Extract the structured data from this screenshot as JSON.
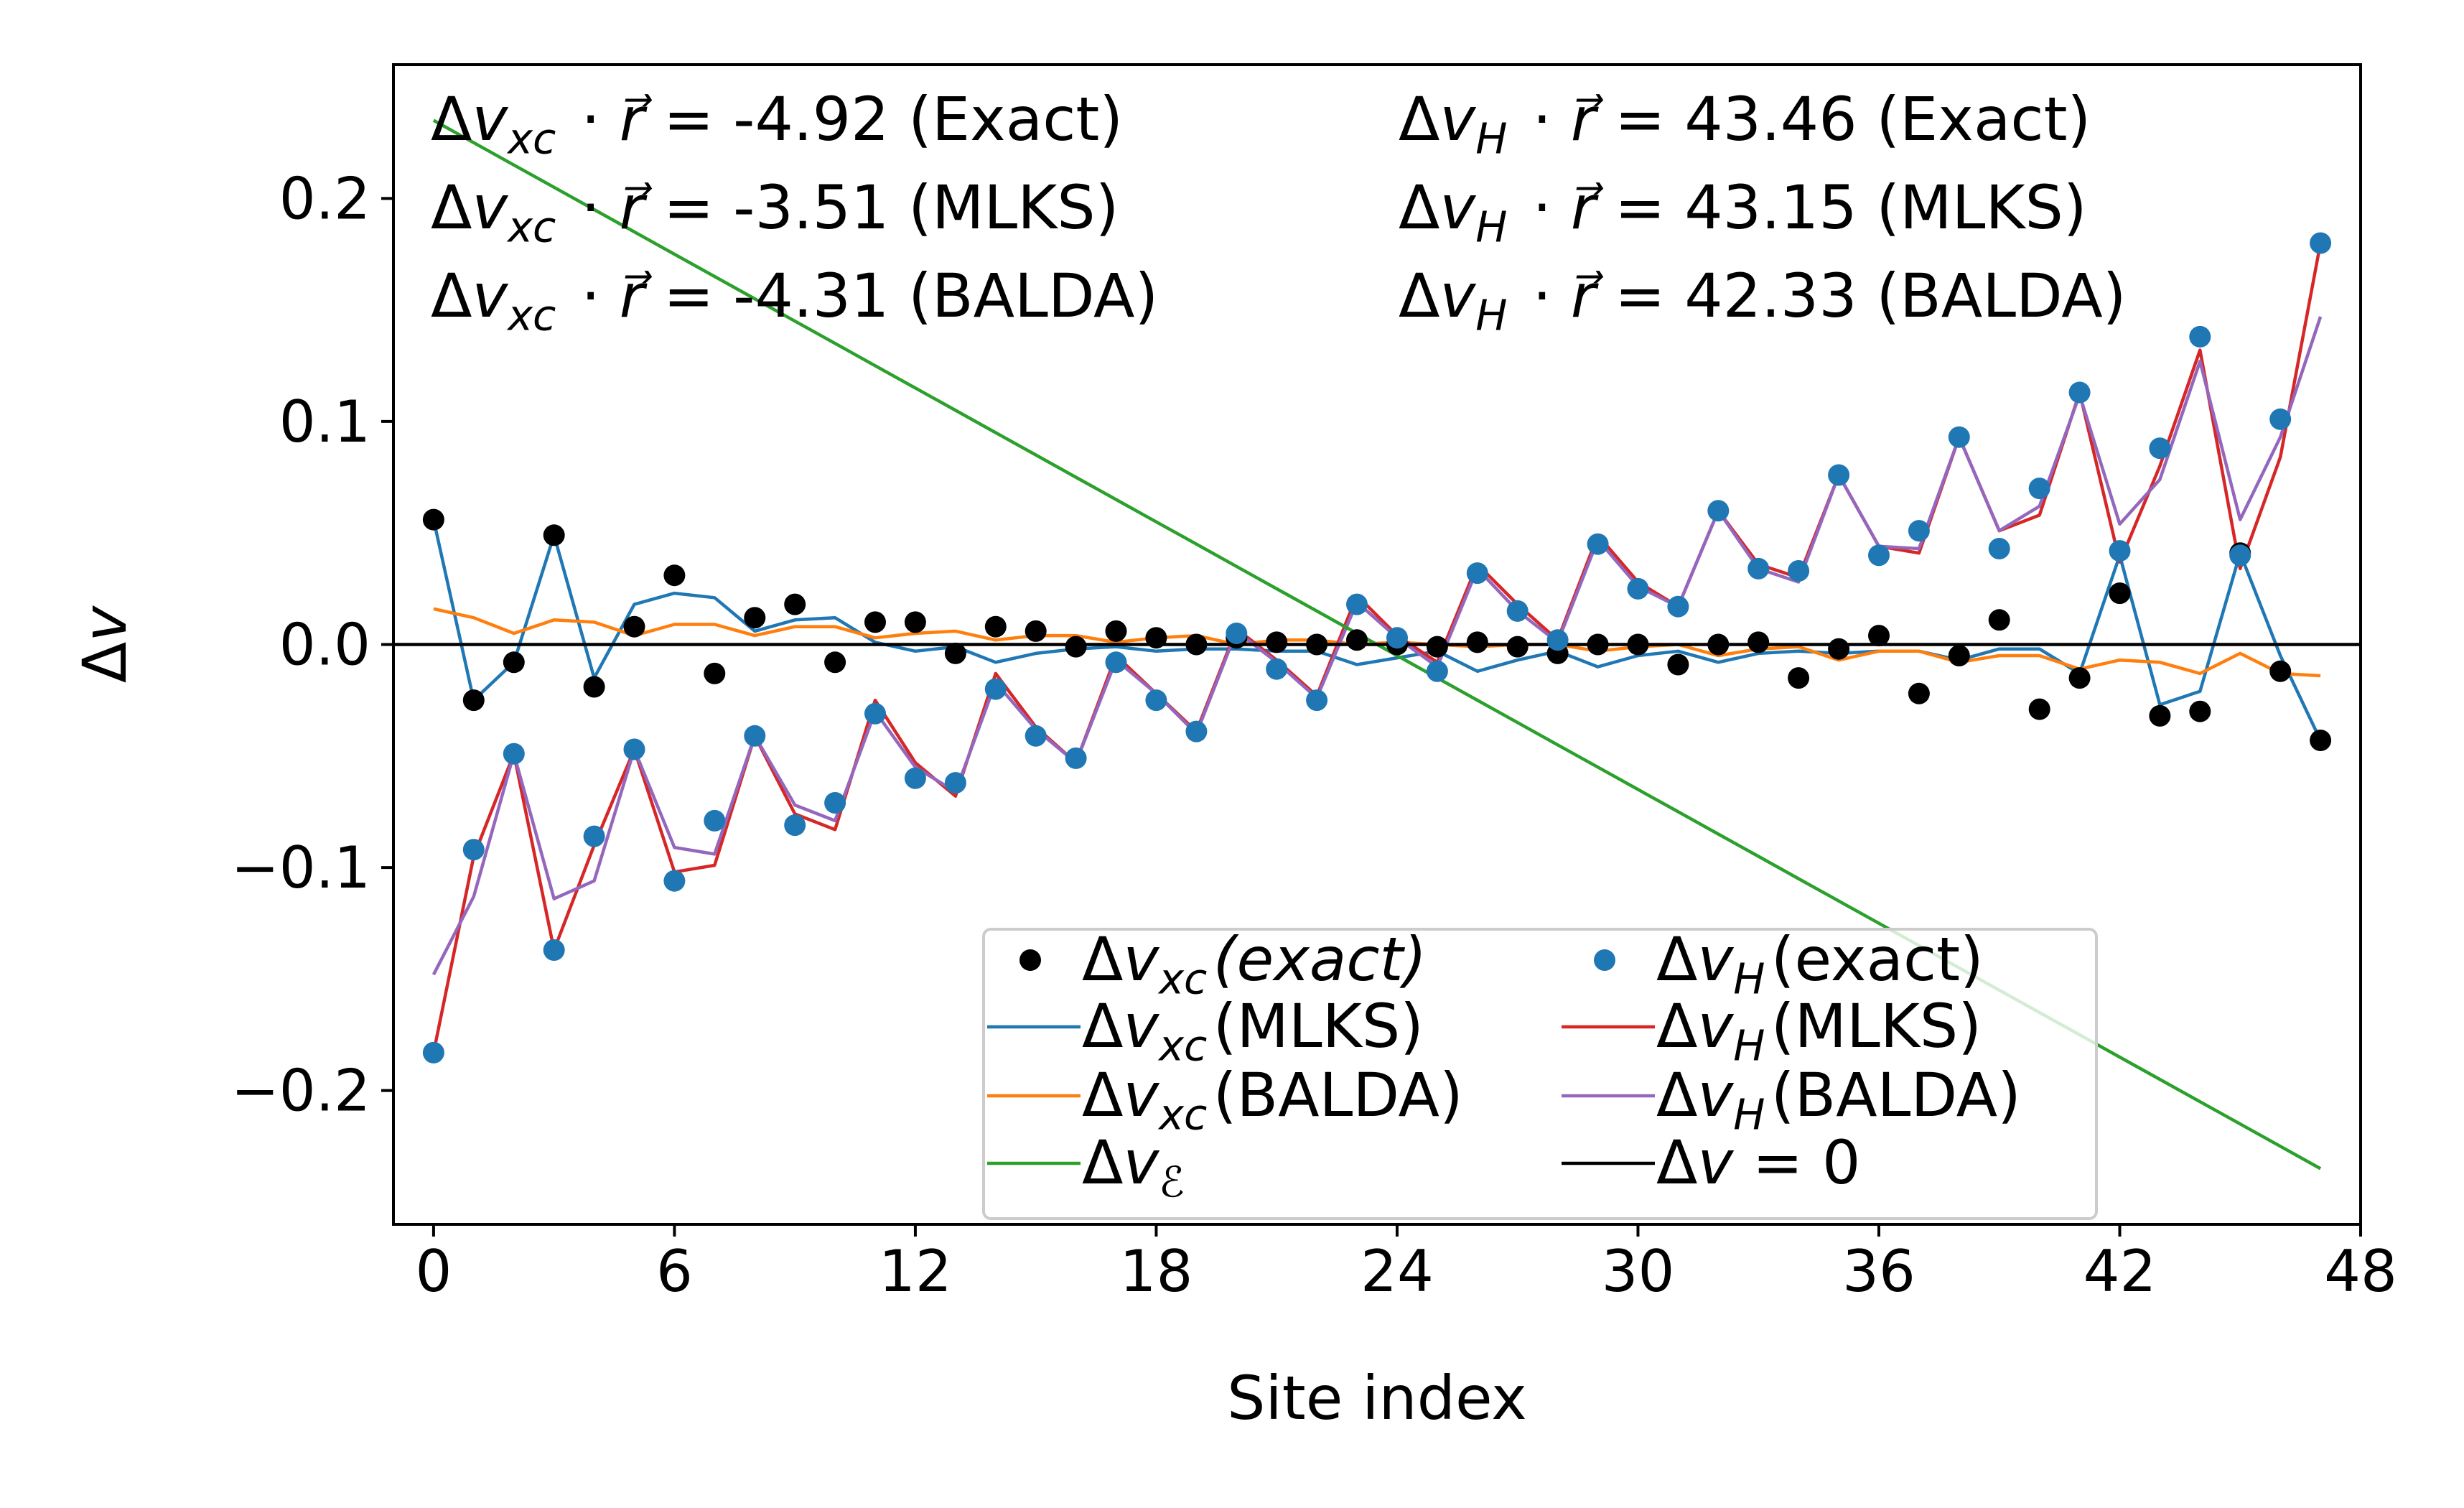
{
  "chart_data": {
    "type": "scatter+line",
    "xlabel": "Site index",
    "ylabel": "Δv",
    "xlim": [
      -1,
      48
    ],
    "ylim": [
      -0.26,
      0.26
    ],
    "xticks": [
      0,
      6,
      12,
      18,
      24,
      30,
      36,
      42,
      48
    ],
    "xtick_labels": [
      "0",
      "6",
      "12",
      "18",
      "24",
      "30",
      "36",
      "42",
      "48"
    ],
    "yticks": [
      -0.2,
      -0.1,
      0.0,
      0.1,
      0.2
    ],
    "ytick_labels": [
      "−0.2",
      "−0.1",
      "0.0",
      "0.1",
      "0.2"
    ],
    "annotations": [
      {
        "lines": [
          "Δv_xc · r⃗ = -4.92 (Exact)",
          "Δv_xc · r⃗ = -3.51 (MLKS)",
          "Δv_xc · r⃗ = -4.31 (BALDA)"
        ]
      },
      {
        "lines": [
          "Δv_H · r⃗ = 43.46 (Exact)",
          "Δv_H · r⃗ = 43.15 (MLKS)",
          "Δv_H · r⃗ = 42.33 (BALDA)"
        ]
      }
    ],
    "annotation_parts": [
      [
        {
          "sym": "Δv",
          "sub": "xc",
          "op": "·",
          "vec": "r⃗",
          "rest": " = -4.92 (Exact)"
        },
        {
          "sym": "Δv",
          "sub": "xc",
          "op": "·",
          "vec": "r⃗",
          "rest": " = -3.51 (MLKS)"
        },
        {
          "sym": "Δv",
          "sub": "xc",
          "op": "·",
          "vec": "r⃗",
          "rest": " = -4.31 (BALDA)"
        }
      ],
      [
        {
          "sym": "Δv",
          "sub": "H",
          "op": "·",
          "vec": "r⃗",
          "rest": " = 43.46 (Exact)"
        },
        {
          "sym": "Δv",
          "sub": "H",
          "op": "·",
          "vec": "r⃗",
          "rest": " = 43.15 (MLKS)"
        },
        {
          "sym": "Δv",
          "sub": "H",
          "op": "·",
          "vec": "r⃗",
          "rest": " = 42.33 (BALDA)"
        }
      ]
    ],
    "legend": {
      "placement": "lower-right",
      "entries": [
        {
          "label": "Δv_xc(exact)",
          "sym": "Δv",
          "sub": "xc",
          "tail": "(exact)",
          "tail_italic": true,
          "marker": "dot",
          "series": "vxc_exact"
        },
        {
          "label": "Δv_H(exact)",
          "sym": "Δv",
          "sub": "H",
          "tail": "(exact)",
          "tail_italic": false,
          "marker": "dot",
          "series": "vh_exact"
        },
        {
          "label": "Δv_xc(MLKS)",
          "sym": "Δv",
          "sub": "xc",
          "tail": "(MLKS)",
          "tail_italic": false,
          "marker": "line",
          "series": "vxc_mlks"
        },
        {
          "label": "Δv_H(MLKS)",
          "sym": "Δv",
          "sub": "H",
          "tail": "(MLKS)",
          "tail_italic": false,
          "marker": "line",
          "series": "vh_mlks"
        },
        {
          "label": "Δv_xc(BALDA)",
          "sym": "Δv",
          "sub": "xc",
          "tail": "(BALDA)",
          "tail_italic": false,
          "marker": "line",
          "series": "vxc_balda"
        },
        {
          "label": "Δv_H(BALDA)",
          "sym": "Δv",
          "sub": "H",
          "tail": "(BALDA)",
          "tail_italic": false,
          "marker": "line",
          "series": "vh_balda"
        },
        {
          "label": "Δv_ℰ",
          "sym": "Δv",
          "sub": "ℰ",
          "tail": "",
          "tail_italic": false,
          "marker": "line",
          "series": "v_field"
        },
        {
          "label": "Δv = 0",
          "sym": "Δv",
          "sub": "",
          "tail": " = 0",
          "tail_italic": false,
          "marker": "line",
          "series": "zero"
        }
      ]
    },
    "x": [
      0,
      1,
      2,
      3,
      4,
      5,
      6,
      7,
      8,
      9,
      10,
      11,
      12,
      13,
      14,
      15,
      16,
      17,
      18,
      19,
      20,
      21,
      22,
      23,
      24,
      25,
      26,
      27,
      28,
      29,
      30,
      31,
      32,
      33,
      34,
      35,
      36,
      37,
      38,
      39,
      40,
      41,
      42,
      43,
      44,
      45,
      46,
      47
    ],
    "series": [
      {
        "id": "vxc_exact",
        "name": "Δv_xc(exact)",
        "style": "points",
        "color": "#000000",
        "values": [
          0.056,
          -0.025,
          -0.008,
          0.049,
          -0.019,
          0.008,
          0.031,
          -0.013,
          0.012,
          0.018,
          -0.008,
          0.01,
          0.01,
          -0.004,
          0.008,
          0.006,
          -0.001,
          0.006,
          0.003,
          0.0,
          0.003,
          0.001,
          0.0,
          0.002,
          0.0,
          -0.001,
          0.001,
          -0.001,
          -0.004,
          0.0,
          0.0,
          -0.009,
          0.0,
          0.001,
          -0.015,
          -0.002,
          0.004,
          -0.022,
          -0.005,
          0.011,
          -0.029,
          -0.015,
          0.023,
          -0.032,
          -0.03,
          0.041,
          -0.012,
          -0.043
        ]
      },
      {
        "id": "vh_exact",
        "name": "Δv_H(exact)",
        "style": "points",
        "color": "#1f77b4",
        "values": [
          -0.183,
          -0.092,
          -0.049,
          -0.137,
          -0.086,
          -0.047,
          -0.106,
          -0.079,
          -0.041,
          -0.081,
          -0.071,
          -0.031,
          -0.06,
          -0.062,
          -0.02,
          -0.041,
          -0.051,
          -0.008,
          -0.025,
          -0.039,
          0.005,
          -0.011,
          -0.025,
          0.018,
          0.003,
          -0.012,
          0.032,
          0.015,
          0.002,
          0.045,
          0.025,
          0.017,
          0.06,
          0.034,
          0.033,
          0.076,
          0.04,
          0.051,
          0.093,
          0.043,
          0.07,
          0.113,
          0.042,
          0.088,
          0.138,
          0.04,
          0.101,
          0.18
        ]
      },
      {
        "id": "vxc_mlks",
        "name": "Δv_xc(MLKS)",
        "style": "line",
        "color": "#1f77b4",
        "values": [
          0.056,
          -0.025,
          -0.008,
          0.049,
          -0.015,
          0.018,
          0.023,
          0.021,
          0.006,
          0.011,
          0.012,
          0.001,
          -0.003,
          -0.001,
          -0.008,
          -0.004,
          -0.002,
          -0.001,
          -0.003,
          -0.002,
          -0.002,
          -0.003,
          -0.003,
          -0.009,
          -0.006,
          -0.003,
          -0.012,
          -0.007,
          -0.003,
          -0.01,
          -0.005,
          -0.003,
          -0.008,
          -0.004,
          -0.003,
          -0.004,
          -0.003,
          -0.003,
          -0.007,
          -0.002,
          -0.002,
          -0.013,
          0.04,
          -0.027,
          -0.021,
          0.041,
          -0.005,
          -0.043
        ]
      },
      {
        "id": "vxc_balda",
        "name": "Δv_xc(BALDA)",
        "style": "line",
        "color": "#ff7f0e",
        "values": [
          0.016,
          0.012,
          0.005,
          0.011,
          0.01,
          0.004,
          0.009,
          0.009,
          0.004,
          0.008,
          0.008,
          0.003,
          0.005,
          0.006,
          0.002,
          0.004,
          0.004,
          0.001,
          0.003,
          0.004,
          0.0,
          0.002,
          0.002,
          0.0,
          0.001,
          0.0,
          -0.001,
          0.0,
          0.0,
          -0.003,
          -0.001,
          0.0,
          -0.005,
          -0.002,
          -0.001,
          -0.007,
          -0.003,
          -0.003,
          -0.008,
          -0.005,
          -0.005,
          -0.011,
          -0.007,
          -0.008,
          -0.013,
          -0.004,
          -0.013,
          -0.014
        ]
      },
      {
        "id": "vh_mlks",
        "name": "Δv_H(MLKS)",
        "style": "line",
        "color": "#d62728",
        "values": [
          -0.183,
          -0.095,
          -0.049,
          -0.137,
          -0.09,
          -0.047,
          -0.102,
          -0.099,
          -0.041,
          -0.076,
          -0.083,
          -0.025,
          -0.053,
          -0.068,
          -0.013,
          -0.037,
          -0.053,
          -0.005,
          -0.022,
          -0.039,
          0.007,
          -0.007,
          -0.023,
          0.022,
          0.004,
          -0.008,
          0.036,
          0.018,
          0.002,
          0.049,
          0.028,
          0.017,
          0.06,
          0.036,
          0.03,
          0.076,
          0.044,
          0.041,
          0.093,
          0.051,
          0.058,
          0.113,
          0.037,
          0.08,
          0.132,
          0.034,
          0.084,
          0.18
        ]
      },
      {
        "id": "vh_balda",
        "name": "Δv_H(BALDA)",
        "style": "line",
        "color": "#9467bd",
        "values": [
          -0.148,
          -0.113,
          -0.049,
          -0.114,
          -0.106,
          -0.047,
          -0.091,
          -0.094,
          -0.041,
          -0.072,
          -0.079,
          -0.03,
          -0.055,
          -0.066,
          -0.017,
          -0.038,
          -0.053,
          -0.007,
          -0.022,
          -0.04,
          0.006,
          -0.008,
          -0.024,
          0.019,
          0.003,
          -0.01,
          0.034,
          0.015,
          0.001,
          0.047,
          0.026,
          0.017,
          0.06,
          0.034,
          0.028,
          0.076,
          0.044,
          0.043,
          0.093,
          0.051,
          0.062,
          0.112,
          0.054,
          0.074,
          0.127,
          0.056,
          0.093,
          0.147
        ]
      },
      {
        "id": "v_field",
        "name": "Δv_ℰ",
        "style": "line",
        "color": "#2ca02c",
        "values": [
          0.235,
          0.225,
          0.215,
          0.205,
          0.195,
          0.185,
          0.175,
          0.165,
          0.155,
          0.145,
          0.135,
          0.125,
          0.115,
          0.105,
          0.095,
          0.085,
          0.075,
          0.065,
          0.055,
          0.045,
          0.035,
          0.025,
          0.015,
          0.005,
          -0.005,
          -0.015,
          -0.025,
          -0.035,
          -0.045,
          -0.055,
          -0.065,
          -0.075,
          -0.085,
          -0.095,
          -0.105,
          -0.115,
          -0.125,
          -0.135,
          -0.145,
          -0.155,
          -0.165,
          -0.175,
          -0.185,
          -0.195,
          -0.205,
          -0.215,
          -0.225,
          -0.235
        ]
      },
      {
        "id": "zero",
        "name": "Δv = 0",
        "style": "hline",
        "color": "#000000",
        "value": 0
      }
    ]
  }
}
